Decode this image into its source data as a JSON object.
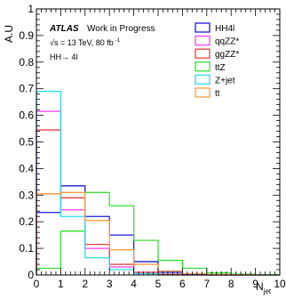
{
  "chart_data": {
    "type": "histogram",
    "ylabel": "A.U",
    "xlabel": "N",
    "xlabel_sub": "jet",
    "xlim": [
      0,
      10
    ],
    "ylim": [
      0,
      1
    ],
    "x_ticks": [
      "0",
      "1",
      "2",
      "3",
      "4",
      "5",
      "6",
      "7",
      "8",
      "9",
      "10"
    ],
    "y_ticks": [
      "0",
      "0.1",
      "0.2",
      "0.3",
      "0.4",
      "0.5",
      "0.6",
      "0.7",
      "0.8",
      "0.9",
      "1"
    ],
    "annotation": {
      "atlas": "ATLAS",
      "status": "Work in Progress",
      "energy_line": "√s  = 13 TeV, 80 fb",
      "energy_sup": "-1",
      "process": "HH→ 4l"
    },
    "bin_edges": [
      0,
      1,
      2,
      3,
      4,
      5,
      6,
      7,
      8,
      9,
      10
    ],
    "series": [
      {
        "name": "HH4l",
        "color": "#1a1ad9",
        "values": [
          0.235,
          0.335,
          0.22,
          0.15,
          0.05,
          0.01,
          0.003,
          0,
          0,
          0
        ]
      },
      {
        "name": "qqZZ*",
        "color": "#ff3cff",
        "values": [
          0.615,
          0.245,
          0.1,
          0.03,
          0.01,
          0.002,
          0,
          0,
          0,
          0
        ]
      },
      {
        "name": "ggZZ*",
        "color": "#e64040",
        "values": [
          0.545,
          0.29,
          0.115,
          0.04,
          0.01,
          0.003,
          0,
          0,
          0,
          0
        ]
      },
      {
        "name": "ttZ",
        "color": "#35e035",
        "values": [
          0.025,
          0.165,
          0.31,
          0.26,
          0.13,
          0.055,
          0.025,
          0.008,
          0.003,
          0.001
        ]
      },
      {
        "name": "Z+jet",
        "color": "#2fd8f0",
        "values": [
          0.69,
          0.22,
          0.065,
          0.02,
          0.005,
          0,
          0,
          0,
          0,
          0
        ]
      },
      {
        "name": "tt",
        "color": "#ff9a40",
        "values": [
          0.305,
          0.31,
          0.205,
          0.095,
          0.04,
          0.015,
          0.005,
          0.002,
          0.001,
          0
        ]
      }
    ],
    "legend_placement": "top-right",
    "grid": false
  }
}
